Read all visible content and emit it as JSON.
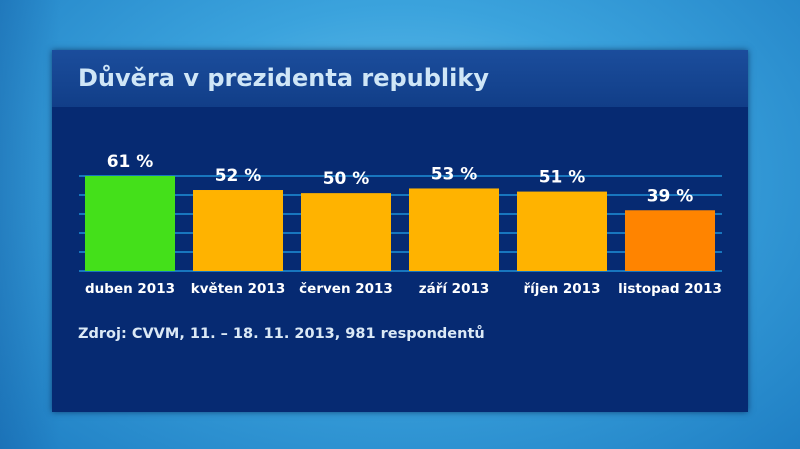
{
  "title": "Důvěra v prezidenta republiky",
  "source": "Zdroj: CVVM, 11. – 18. 11. 2013, 981 respondentů",
  "colors": {
    "green": "#44e01a",
    "yellow": "#ffb300",
    "orange": "#ff8400",
    "gridline": "#1f8fd8",
    "panel": "#062a72",
    "text": "#ffffff"
  },
  "chart_data": {
    "type": "bar",
    "title": "Důvěra v prezidenta republiky",
    "categories": [
      "duben 2013",
      "květen 2013",
      "červen 2013",
      "září 2013",
      "říjen 2013",
      "listopad 2013"
    ],
    "values": [
      61,
      52,
      50,
      53,
      51,
      39
    ],
    "value_labels": [
      "61 %",
      "52 %",
      "50 %",
      "53 %",
      "51 %",
      "39 %"
    ],
    "bar_colors": [
      "#44e01a",
      "#ffb300",
      "#ffb300",
      "#ffb300",
      "#ffb300",
      "#ff8400"
    ],
    "ylim": [
      0,
      61
    ],
    "grid": true,
    "xlabel": "",
    "ylabel": ""
  }
}
